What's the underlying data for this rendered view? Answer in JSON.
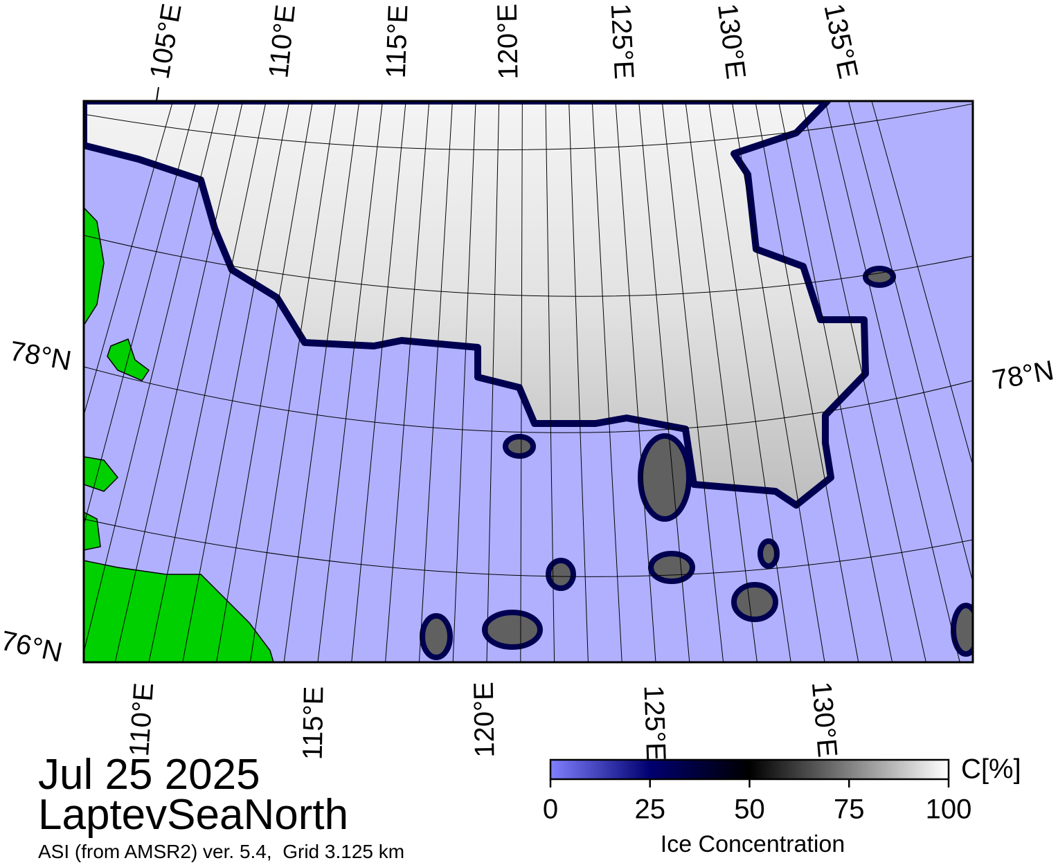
{
  "map": {
    "longitude_labels_top": [
      "105°E",
      "110°E",
      "115°E",
      "120°E",
      "125°E",
      "130°E",
      "135°E"
    ],
    "longitude_labels_bottom": [
      "110°E",
      "115°E",
      "120°E",
      "125°E",
      "130°E"
    ],
    "latitude_labels_left": [
      "78°N",
      "76°N"
    ],
    "latitude_labels_right": [
      "78°N"
    ]
  },
  "caption": {
    "date": "Jul 25 2025",
    "region": "LaptevSeaNorth",
    "source": "ASI (from AMSR2) ver. 5.4,  Grid 3.125 km"
  },
  "colorbar": {
    "unit": "C[%]",
    "label": "Ice Concentration",
    "range": [
      0,
      100
    ],
    "ticks": [
      0,
      25,
      50,
      75,
      100
    ]
  }
}
